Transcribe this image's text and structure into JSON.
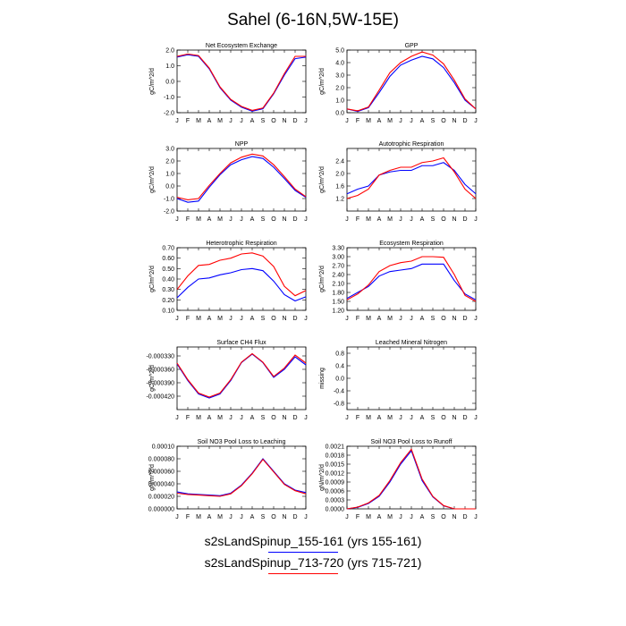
{
  "figure": {
    "title": "Sahel (6-16N,5W-15E)",
    "legend": [
      {
        "label": "s2sLandSpinup_155-161 (yrs 155-161)",
        "color": "#0000ff"
      },
      {
        "label": "s2sLandSpinup_713-720 (yrs 715-721)",
        "color": "#ff0000"
      }
    ],
    "months": [
      "J",
      "F",
      "M",
      "A",
      "M",
      "J",
      "J",
      "A",
      "S",
      "O",
      "N",
      "D",
      "J"
    ]
  },
  "chart_data": [
    {
      "type": "line",
      "title": "Net Ecosystem Exchange",
      "ylabel": "gC/m^2/d",
      "ylim": [
        -2.0,
        2.0
      ],
      "yticks": [
        "2.0",
        "1.0",
        "0.0",
        "-1.0",
        "-2.0"
      ],
      "ytick_values": [
        2.0,
        1.0,
        0.0,
        -1.0,
        -2.0
      ],
      "x": [
        1,
        2,
        3,
        4,
        5,
        6,
        7,
        8,
        9,
        10,
        11,
        12,
        13
      ],
      "series": [
        {
          "color": "#0000ff",
          "values": [
            1.55,
            1.7,
            1.6,
            0.8,
            -0.4,
            -1.2,
            -1.65,
            -1.9,
            -1.75,
            -0.8,
            0.4,
            1.45,
            1.55
          ]
        },
        {
          "color": "#ff0000",
          "values": [
            1.6,
            1.75,
            1.65,
            0.85,
            -0.35,
            -1.15,
            -1.6,
            -1.85,
            -1.7,
            -0.75,
            0.5,
            1.6,
            1.6
          ]
        }
      ]
    },
    {
      "type": "line",
      "title": "GPP",
      "ylabel": "gC/m^2/d",
      "ylim": [
        0.0,
        5.0
      ],
      "yticks": [
        "5.0",
        "4.0",
        "3.0",
        "2.0",
        "1.0",
        "0.0"
      ],
      "ytick_values": [
        5.0,
        4.0,
        3.0,
        2.0,
        1.0,
        0.0
      ],
      "x": [
        1,
        2,
        3,
        4,
        5,
        6,
        7,
        8,
        9,
        10,
        11,
        12,
        13
      ],
      "series": [
        {
          "color": "#0000ff",
          "values": [
            0.3,
            0.1,
            0.4,
            1.6,
            2.9,
            3.8,
            4.2,
            4.5,
            4.3,
            3.6,
            2.4,
            1.0,
            0.3
          ]
        },
        {
          "color": "#ff0000",
          "values": [
            0.3,
            0.15,
            0.45,
            1.8,
            3.2,
            4.0,
            4.5,
            4.85,
            4.6,
            3.9,
            2.6,
            1.1,
            0.3
          ]
        }
      ]
    },
    {
      "type": "line",
      "title": "NPP",
      "ylabel": "gC/m^2/d",
      "ylim": [
        -2.0,
        3.0
      ],
      "yticks": [
        "3.0",
        "2.0",
        "1.0",
        "0.0",
        "-1.0",
        "-2.0"
      ],
      "ytick_values": [
        3.0,
        2.0,
        1.0,
        0.0,
        -1.0,
        -2.0
      ],
      "x": [
        1,
        2,
        3,
        4,
        5,
        6,
        7,
        8,
        9,
        10,
        11,
        12,
        13
      ],
      "series": [
        {
          "color": "#0000ff",
          "values": [
            -1.0,
            -1.3,
            -1.2,
            -0.1,
            0.9,
            1.7,
            2.1,
            2.35,
            2.2,
            1.5,
            0.6,
            -0.35,
            -0.9
          ]
        },
        {
          "color": "#ff0000",
          "values": [
            -0.9,
            -1.1,
            -1.0,
            0.05,
            1.0,
            1.85,
            2.3,
            2.55,
            2.4,
            1.7,
            0.75,
            -0.25,
            -0.85
          ]
        }
      ]
    },
    {
      "type": "line",
      "title": "Autotrophic Respiration",
      "ylabel": "gC/m^2/d",
      "ylim": [
        0.8,
        2.8
      ],
      "yticks": [
        "2.4",
        "2.0",
        "1.6",
        "1.2"
      ],
      "ytick_values": [
        2.4,
        2.0,
        1.6,
        1.2
      ],
      "x": [
        1,
        2,
        3,
        4,
        5,
        6,
        7,
        8,
        9,
        10,
        11,
        12,
        13
      ],
      "series": [
        {
          "color": "#0000ff",
          "values": [
            1.35,
            1.5,
            1.6,
            1.95,
            2.05,
            2.1,
            2.1,
            2.25,
            2.25,
            2.35,
            2.1,
            1.65,
            1.35
          ]
        },
        {
          "color": "#ff0000",
          "values": [
            1.2,
            1.3,
            1.5,
            1.95,
            2.1,
            2.2,
            2.2,
            2.35,
            2.4,
            2.5,
            2.05,
            1.5,
            1.2
          ]
        }
      ]
    },
    {
      "type": "line",
      "title": "Heterotrophic Respiration",
      "ylabel": "gC/m^2/d",
      "ylim": [
        0.1,
        0.7
      ],
      "yticks": [
        "0.70",
        "0.60",
        "0.50",
        "0.40",
        "0.30",
        "0.20",
        "0.10"
      ],
      "ytick_values": [
        0.7,
        0.6,
        0.5,
        0.4,
        0.3,
        0.2,
        0.1
      ],
      "x": [
        1,
        2,
        3,
        4,
        5,
        6,
        7,
        8,
        9,
        10,
        11,
        12,
        13
      ],
      "series": [
        {
          "color": "#0000ff",
          "values": [
            0.22,
            0.32,
            0.4,
            0.41,
            0.44,
            0.46,
            0.49,
            0.5,
            0.48,
            0.38,
            0.25,
            0.19,
            0.23
          ]
        },
        {
          "color": "#ff0000",
          "values": [
            0.3,
            0.43,
            0.53,
            0.54,
            0.58,
            0.6,
            0.64,
            0.65,
            0.62,
            0.52,
            0.33,
            0.24,
            0.29
          ]
        }
      ]
    },
    {
      "type": "line",
      "title": "Ecosystem Respiration",
      "ylabel": "gC/m^2/d",
      "ylim": [
        1.2,
        3.3
      ],
      "yticks": [
        "3.30",
        "3.00",
        "2.70",
        "2.40",
        "2.10",
        "1.80",
        "1.50",
        "1.20"
      ],
      "ytick_values": [
        3.3,
        3.0,
        2.7,
        2.4,
        2.1,
        1.8,
        1.5,
        1.2
      ],
      "x": [
        1,
        2,
        3,
        4,
        5,
        6,
        7,
        8,
        9,
        10,
        11,
        12,
        13
      ],
      "series": [
        {
          "color": "#0000ff",
          "values": [
            1.6,
            1.8,
            2.0,
            2.35,
            2.5,
            2.55,
            2.6,
            2.75,
            2.75,
            2.75,
            2.2,
            1.75,
            1.55
          ]
        },
        {
          "color": "#ff0000",
          "values": [
            1.55,
            1.75,
            2.05,
            2.5,
            2.7,
            2.8,
            2.85,
            3.0,
            3.0,
            2.98,
            2.4,
            1.7,
            1.5
          ]
        }
      ]
    },
    {
      "type": "line",
      "title": "Surface CH4 Flux",
      "ylabel": "gC/m^2/d",
      "ylim": [
        -0.00045,
        -0.00031
      ],
      "yticks": [
        "-0.000330",
        "-0.000360",
        "-0.000390",
        "-0.000420"
      ],
      "ytick_values": [
        -0.00033,
        -0.00036,
        -0.00039,
        -0.00042
      ],
      "x": [
        1,
        2,
        3,
        4,
        5,
        6,
        7,
        8,
        9,
        10,
        11,
        12,
        13
      ],
      "series": [
        {
          "color": "#0000ff",
          "values": [
            -0.000348,
            -0.000385,
            -0.000415,
            -0.000424,
            -0.000415,
            -0.000385,
            -0.000345,
            -0.000326,
            -0.000345,
            -0.000378,
            -0.00036,
            -0.000332,
            -0.00035
          ]
        },
        {
          "color": "#ff0000",
          "values": [
            -0.000346,
            -0.000383,
            -0.000413,
            -0.000422,
            -0.000413,
            -0.000383,
            -0.000344,
            -0.000325,
            -0.000344,
            -0.000376,
            -0.000357,
            -0.000328,
            -0.000346
          ]
        }
      ]
    },
    {
      "type": "line",
      "title": "Leached Mineral Nitrogen",
      "ylabel": "missing",
      "ylim": [
        -1.0,
        1.0
      ],
      "yticks": [
        "0.8",
        "0.4",
        "0.0",
        "-0.4",
        "-0.8"
      ],
      "ytick_values": [
        0.8,
        0.4,
        0.0,
        -0.4,
        -0.8
      ],
      "x": [],
      "series": []
    },
    {
      "type": "line",
      "title": "Soil NO3 Pool Loss to Leaching",
      "ylabel": "gN/m^2/d",
      "ylim": [
        0.0,
        0.0001
      ],
      "yticks": [
        "0.00010",
        "0.000080",
        "0.000060",
        "0.000040",
        "0.000020",
        "0.000000"
      ],
      "ytick_values": [
        0.0001,
        8e-05,
        6e-05,
        4e-05,
        2e-05,
        0.0
      ],
      "x": [
        1,
        2,
        3,
        4,
        5,
        6,
        7,
        8,
        9,
        10,
        11,
        12,
        13
      ],
      "series": [
        {
          "color": "#0000ff",
          "values": [
            2.7e-05,
            2.4e-05,
            2.3e-05,
            2.2e-05,
            2.1e-05,
            2.5e-05,
            3.8e-05,
            5.7e-05,
            8e-05,
            6e-05,
            4e-05,
            3e-05,
            2.6e-05
          ]
        },
        {
          "color": "#ff0000",
          "values": [
            2.5e-05,
            2.3e-05,
            2.2e-05,
            2.1e-05,
            2e-05,
            2.4e-05,
            3.7e-05,
            5.6e-05,
            7.9e-05,
            5.9e-05,
            3.9e-05,
            2.9e-05,
            2.4e-05
          ]
        }
      ]
    },
    {
      "type": "line",
      "title": "Soil NO3 Pool Loss to Runoff",
      "ylabel": "gN/m^2/d",
      "ylim": [
        0.0,
        0.0021
      ],
      "yticks": [
        "0.0021",
        "0.0018",
        "0.0015",
        "0.0012",
        "0.0009",
        "0.0006",
        "0.0003",
        "0.0000"
      ],
      "ytick_values": [
        0.0021,
        0.0018,
        0.0015,
        0.0012,
        0.0009,
        0.0006,
        0.0003,
        0.0
      ],
      "x": [
        1,
        2,
        3,
        4,
        5,
        6,
        7,
        8,
        9,
        10,
        11,
        12,
        13
      ],
      "series": [
        {
          "color": "#0000ff",
          "values": [
            0.0,
            5e-05,
            0.00018,
            0.00042,
            0.0009,
            0.0015,
            0.00195,
            0.00095,
            0.0004,
            0.0001,
            0.0,
            0.0,
            0.0
          ]
        },
        {
          "color": "#ff0000",
          "values": [
            0.0,
            6e-05,
            0.0002,
            0.00045,
            0.00095,
            0.00155,
            0.002,
            0.001,
            0.00042,
            0.00011,
            0.0,
            0.0,
            0.0
          ]
        }
      ]
    }
  ]
}
